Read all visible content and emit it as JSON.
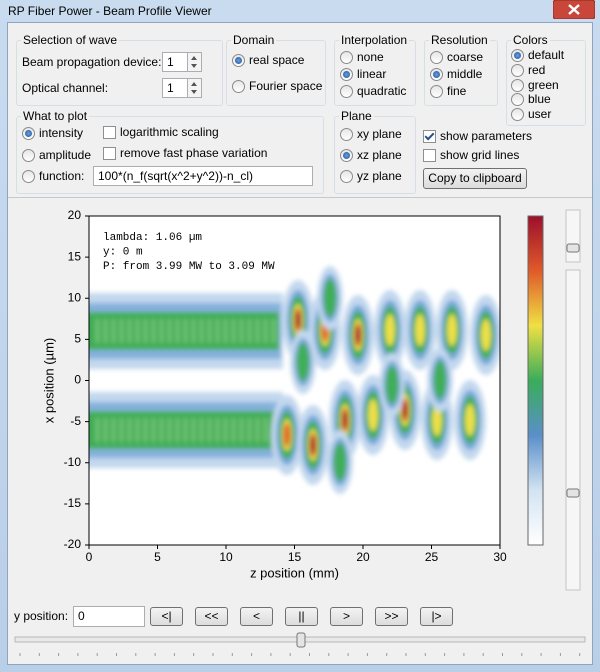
{
  "window": {
    "title": "RP Fiber Power - Beam Profile Viewer"
  },
  "selection_of_wave": {
    "title": "Selection of wave",
    "fields": [
      {
        "label": "Beam propagation device:",
        "value": "1"
      },
      {
        "label": "Optical channel:",
        "value": "1"
      }
    ]
  },
  "domain": {
    "title": "Domain",
    "options": [
      "real space",
      "Fourier space"
    ],
    "selected": 0
  },
  "interpolation": {
    "title": "Interpolation",
    "options": [
      "none",
      "linear",
      "quadratic"
    ],
    "selected": 1
  },
  "resolution": {
    "title": "Resolution",
    "options": [
      "coarse",
      "middle",
      "fine"
    ],
    "selected": 1
  },
  "colors": {
    "title": "Colors",
    "options": [
      "default",
      "red",
      "green",
      "blue",
      "user"
    ],
    "selected": 0
  },
  "what_to_plot": {
    "title": "What to plot",
    "options": [
      "intensity",
      "amplitude",
      "function:"
    ],
    "selected": 0,
    "checkboxes": [
      {
        "label": "logarithmic scaling",
        "checked": false
      },
      {
        "label": "remove fast phase variation",
        "checked": false
      }
    ],
    "function": "100*(n_f(sqrt(x^2+y^2))-n_cl)"
  },
  "plane": {
    "title": "Plane",
    "options": [
      "xy plane",
      "xz plane",
      "yz plane"
    ],
    "selected": 1
  },
  "display": {
    "checkboxes": [
      {
        "label": "show parameters",
        "checked": true
      },
      {
        "label": "show grid lines",
        "checked": false
      }
    ],
    "button": "Copy to clipboard"
  },
  "chart_data": {
    "type": "heatmap",
    "xlabel": "z position (mm)",
    "ylabel": "x position (µm)",
    "xlim": [
      0,
      30
    ],
    "ylim": [
      -20,
      20
    ],
    "xticks": [
      0,
      5,
      10,
      15,
      20,
      25,
      30
    ],
    "yticks": [
      -20,
      -15,
      -10,
      -5,
      0,
      5,
      10,
      15,
      20
    ],
    "annotations": [
      "lambda: 1.06 µm",
      "y: 0 m",
      "P: from 3.99 MW to 3.09 MW"
    ],
    "colorbar_colors": [
      "#ffffff",
      "#d3e3f2",
      "#5a8fc9",
      "#39ad5a",
      "#efe043",
      "#e05a2a",
      "#9c0f2b"
    ]
  },
  "y_position": {
    "label": "y position:",
    "value": "0"
  },
  "playback_buttons": [
    "<|",
    "<<",
    "<",
    "||",
    ">",
    ">>",
    "|>"
  ]
}
